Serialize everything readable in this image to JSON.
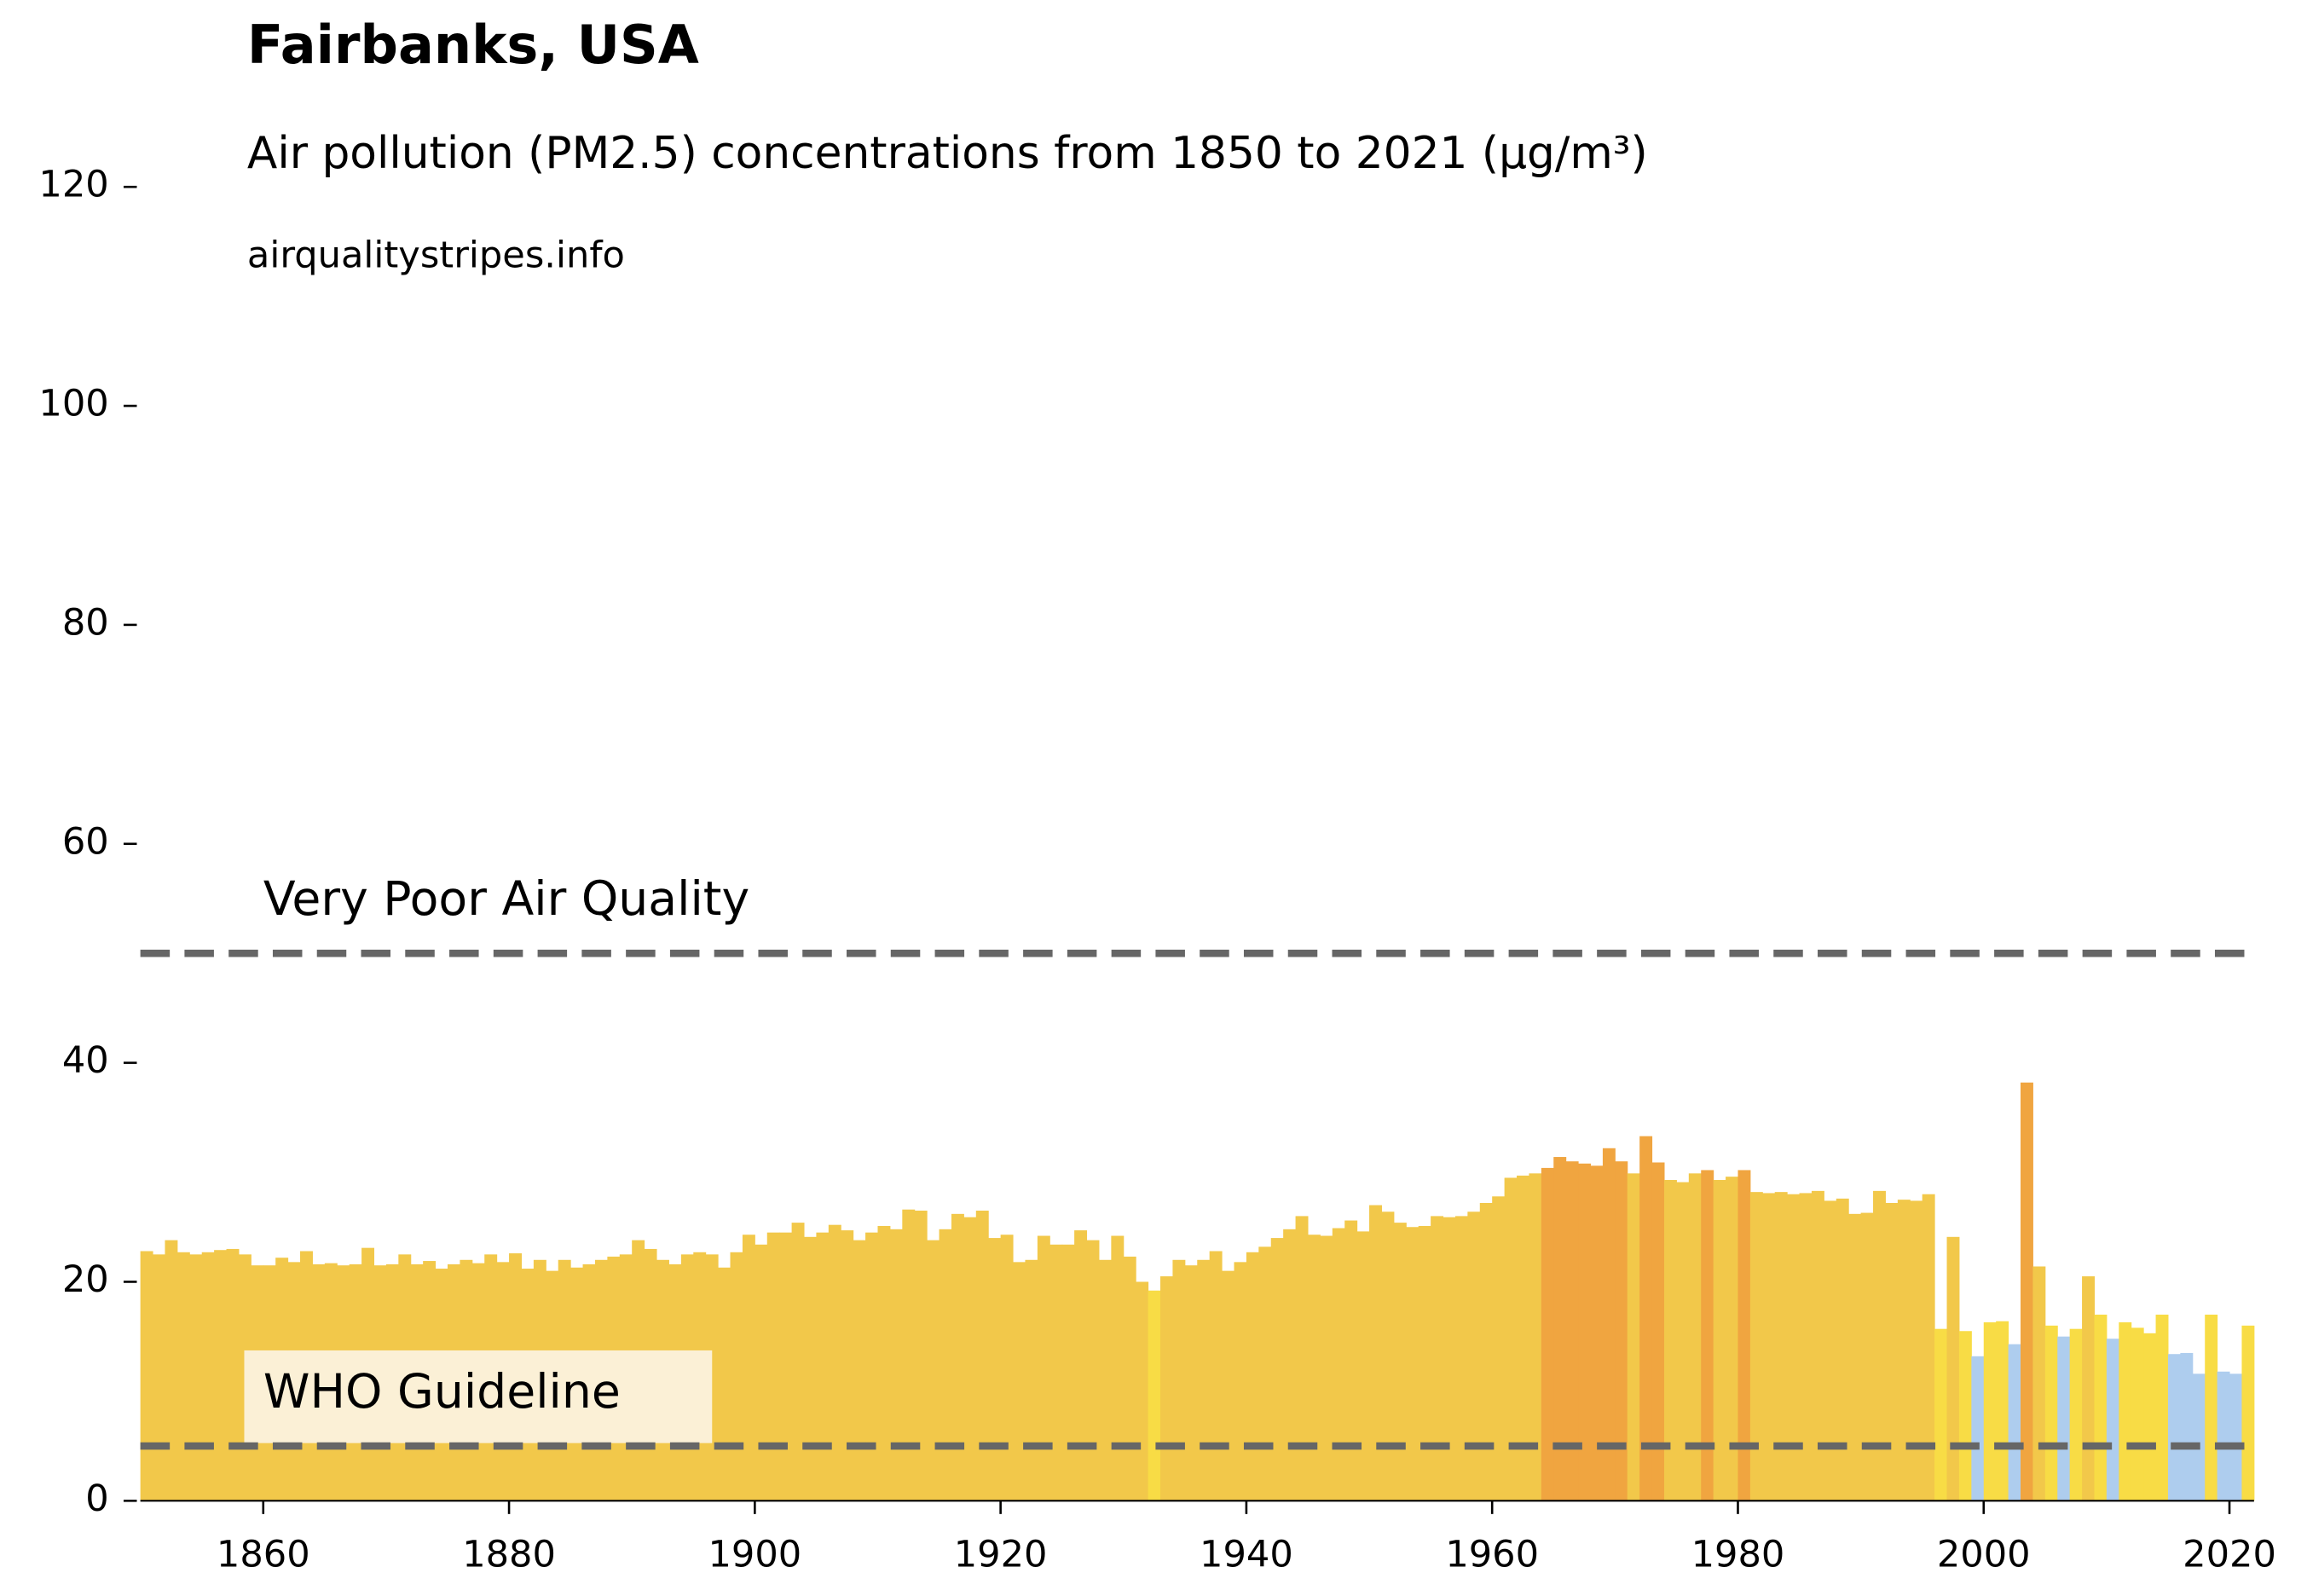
{
  "chart_data": {
    "type": "bar",
    "title": "Fairbanks, USA",
    "subtitle": "Air pollution (PM2.5) concentrations from 1850 to 2021 (µg/m³)",
    "source": "airqualitystripes.info",
    "x": [
      1850,
      1851,
      1852,
      1853,
      1854,
      1855,
      1856,
      1857,
      1858,
      1859,
      1860,
      1861,
      1862,
      1863,
      1864,
      1865,
      1866,
      1867,
      1868,
      1869,
      1870,
      1871,
      1872,
      1873,
      1874,
      1875,
      1876,
      1877,
      1878,
      1879,
      1880,
      1881,
      1882,
      1883,
      1884,
      1885,
      1886,
      1887,
      1888,
      1889,
      1890,
      1891,
      1892,
      1893,
      1894,
      1895,
      1896,
      1897,
      1898,
      1899,
      1900,
      1901,
      1902,
      1903,
      1904,
      1905,
      1906,
      1907,
      1908,
      1909,
      1910,
      1911,
      1912,
      1913,
      1914,
      1915,
      1916,
      1917,
      1918,
      1919,
      1920,
      1921,
      1922,
      1923,
      1924,
      1925,
      1926,
      1927,
      1928,
      1929,
      1930,
      1931,
      1932,
      1933,
      1934,
      1935,
      1936,
      1937,
      1938,
      1939,
      1940,
      1941,
      1942,
      1943,
      1944,
      1945,
      1946,
      1947,
      1948,
      1949,
      1950,
      1951,
      1952,
      1953,
      1954,
      1955,
      1956,
      1957,
      1958,
      1959,
      1960,
      1961,
      1962,
      1963,
      1964,
      1965,
      1966,
      1967,
      1968,
      1969,
      1970,
      1971,
      1972,
      1973,
      1974,
      1975,
      1976,
      1977,
      1978,
      1979,
      1980,
      1981,
      1982,
      1983,
      1984,
      1985,
      1986,
      1987,
      1988,
      1989,
      1990,
      1991,
      1992,
      1993,
      1994,
      1995,
      1996,
      1997,
      1998,
      1999,
      2000,
      2001,
      2002,
      2003,
      2004,
      2005,
      2006,
      2007,
      2008,
      2009,
      2010,
      2011,
      2012,
      2013,
      2014,
      2015,
      2016,
      2017,
      2018,
      2019,
      2020,
      2021
    ],
    "values": [
      22.8,
      22.5,
      23.8,
      22.7,
      22.5,
      22.7,
      22.9,
      23.0,
      22.5,
      21.5,
      21.5,
      22.2,
      21.8,
      22.8,
      21.6,
      21.7,
      21.5,
      21.6,
      23.1,
      21.5,
      21.6,
      22.5,
      21.6,
      21.9,
      21.2,
      21.6,
      22.0,
      21.7,
      22.5,
      21.8,
      22.6,
      21.2,
      22.0,
      21.0,
      22.0,
      21.3,
      21.6,
      22.0,
      22.3,
      22.5,
      23.8,
      23.0,
      22.0,
      21.6,
      22.5,
      22.7,
      22.5,
      21.3,
      22.7,
      24.3,
      23.4,
      24.5,
      24.5,
      25.4,
      24.1,
      24.5,
      25.2,
      24.7,
      23.8,
      24.5,
      25.1,
      24.8,
      26.6,
      26.5,
      23.8,
      24.8,
      26.2,
      25.9,
      26.5,
      24.0,
      24.3,
      21.8,
      22.0,
      24.2,
      23.4,
      23.4,
      24.7,
      23.8,
      22.0,
      24.2,
      22.3,
      20.0,
      19.2,
      20.5,
      22.0,
      21.5,
      22.0,
      22.8,
      21.0,
      21.8,
      22.7,
      23.2,
      24.0,
      24.8,
      26.0,
      24.3,
      24.2,
      24.9,
      25.6,
      24.6,
      27.0,
      26.4,
      25.4,
      25.0,
      25.1,
      26.0,
      25.9,
      26.0,
      26.4,
      27.2,
      27.8,
      29.5,
      29.7,
      29.9,
      30.4,
      31.4,
      31.0,
      30.8,
      30.6,
      32.2,
      31.0,
      29.9,
      33.3,
      30.9,
      29.3,
      29.1,
      29.9,
      30.2,
      29.3,
      29.6,
      30.2,
      28.2,
      28.1,
      28.2,
      28.0,
      28.1,
      28.3,
      27.4,
      27.6,
      26.2,
      26.3,
      28.3,
      27.2,
      27.5,
      27.4,
      28.0,
      15.7,
      24.1,
      15.5,
      13.2,
      16.3,
      16.4,
      14.3,
      38.2,
      21.4,
      16.0,
      15.0,
      15.7,
      20.5,
      17.0,
      14.8,
      16.3,
      15.8,
      15.3,
      17.0,
      13.4,
      13.5,
      11.6,
      17.0,
      11.8,
      11.6,
      16.0
    ],
    "colors": [
      "#f2c84a",
      "#f2c84a",
      "#f2c84a",
      "#f2c84a",
      "#f2c84a",
      "#f2c84a",
      "#f2c84a",
      "#f2c84a",
      "#f2c84a",
      "#f2c84a",
      "#f2c84a",
      "#f2c84a",
      "#f2c84a",
      "#f2c84a",
      "#f2c84a",
      "#f2c84a",
      "#f2c84a",
      "#f2c84a",
      "#f2c84a",
      "#f2c84a",
      "#f2c84a",
      "#f2c84a",
      "#f2c84a",
      "#f2c84a",
      "#f2c84a",
      "#f2c84a",
      "#f2c84a",
      "#f2c84a",
      "#f2c84a",
      "#f2c84a",
      "#f2c84a",
      "#f2c84a",
      "#f2c84a",
      "#f2c84a",
      "#f2c84a",
      "#f2c84a",
      "#f2c84a",
      "#f2c84a",
      "#f2c84a",
      "#f2c84a",
      "#f2c84a",
      "#f2c84a",
      "#f2c84a",
      "#f2c84a",
      "#f2c84a",
      "#f2c84a",
      "#f2c84a",
      "#f2c84a",
      "#f2c84a",
      "#f2c84a",
      "#f2c84a",
      "#f2c84a",
      "#f2c84a",
      "#f2c84a",
      "#f2c84a",
      "#f2c84a",
      "#f2c84a",
      "#f2c84a",
      "#f2c84a",
      "#f2c84a",
      "#f2c84a",
      "#f2c84a",
      "#f2c84a",
      "#f2c84a",
      "#f2c84a",
      "#f2c84a",
      "#f2c84a",
      "#f2c84a",
      "#f2c84a",
      "#f2c84a",
      "#f2c84a",
      "#f2c84a",
      "#f2c84a",
      "#f2c84a",
      "#f2c84a",
      "#f2c84a",
      "#f2c84a",
      "#f2c84a",
      "#f2c84a",
      "#f2c84a",
      "#f2c84a",
      "#f2c84a",
      "#f8dc45",
      "#f2c84a",
      "#f2c84a",
      "#f2c84a",
      "#f2c84a",
      "#f2c84a",
      "#f2c84a",
      "#f2c84a",
      "#f2c84a",
      "#f2c84a",
      "#f2c84a",
      "#f2c84a",
      "#f2c84a",
      "#f2c84a",
      "#f2c84a",
      "#f2c84a",
      "#f2c84a",
      "#f2c84a",
      "#f2c84a",
      "#f2c84a",
      "#f2c84a",
      "#f2c84a",
      "#f2c84a",
      "#f2c84a",
      "#f2c84a",
      "#f2c84a",
      "#f2c84a",
      "#f2c84a",
      "#f2c84a",
      "#f2c84a",
      "#f2c84a",
      "#f2c84a",
      "#f0a540",
      "#f0a540",
      "#f0a540",
      "#f0a540",
      "#f0a540",
      "#f0a540",
      "#f0a540",
      "#f2c84a",
      "#f0a540",
      "#f0a540",
      "#f2c84a",
      "#f2c84a",
      "#f2c84a",
      "#f0a540",
      "#f2c84a",
      "#f2c84a",
      "#f0a540",
      "#f2c84a",
      "#f2c84a",
      "#f2c84a",
      "#f2c84a",
      "#f2c84a",
      "#f2c84a",
      "#f2c84a",
      "#f2c84a",
      "#f2c84a",
      "#f2c84a",
      "#f2c84a",
      "#f2c84a",
      "#f2c84a",
      "#f2c84a",
      "#f2c84a",
      "#f8dc45",
      "#f2c84a",
      "#f8dc45",
      "#aecdee",
      "#f8dc45",
      "#f8dc45",
      "#aecdee",
      "#f0a540",
      "#f2c84a",
      "#f8dc45",
      "#aecdee",
      "#f8dc45",
      "#f2c84a",
      "#f8dc45",
      "#aecdee",
      "#f8dc45",
      "#f8dc45",
      "#f8dc45",
      "#f8dc45",
      "#aecdee",
      "#aecdee",
      "#aecdee",
      "#f8dc45",
      "#aecdee",
      "#aecdee",
      "#f8dc45"
    ],
    "reference_lines": [
      {
        "value": 50,
        "label": "Very Poor Air Quality",
        "color": "#666666"
      },
      {
        "value": 5,
        "label": "WHO Guideline",
        "color": "#666666"
      }
    ],
    "xlim": [
      1850,
      2022
    ],
    "xticks": [
      1860,
      1880,
      1900,
      1920,
      1940,
      1960,
      1980,
      2000,
      2020
    ],
    "ylim": [
      0,
      120
    ],
    "yticks": [
      0,
      20,
      40,
      60,
      80,
      100,
      120
    ],
    "grid": false
  }
}
